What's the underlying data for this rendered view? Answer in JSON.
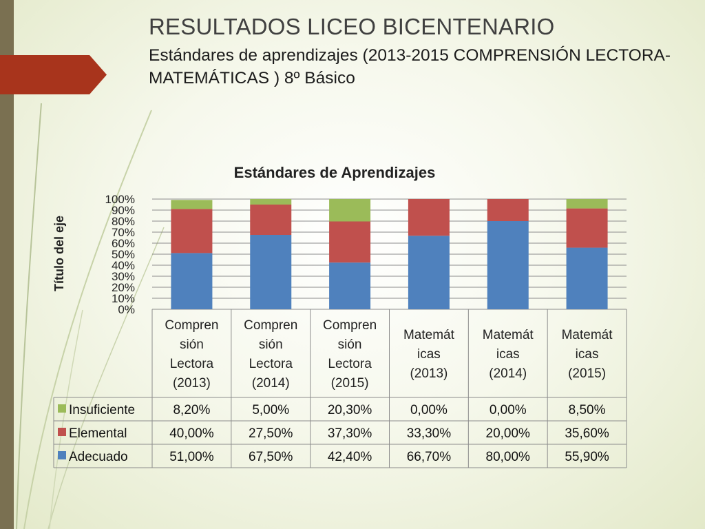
{
  "page": {
    "title": "RESULTADOS LICEO BICENTENARIO",
    "subtitle": "Estándares de aprendizajes (2013-2015 COMPRENSIÓN LECTORA- MATEMÁTICAS ) 8º Básico"
  },
  "chart_data": {
    "type": "bar",
    "stacked": true,
    "title": "Estándares de Aprendizajes",
    "ylabel": "Título del eje",
    "ylim": [
      0,
      100
    ],
    "yticks": [
      "0%",
      "10%",
      "20%",
      "30%",
      "40%",
      "50%",
      "60%",
      "70%",
      "80%",
      "90%",
      "100%"
    ],
    "grid": true,
    "legend_placement": "data-table-left",
    "categories": [
      [
        "Compren",
        "sión",
        "Lectora",
        "(2013)"
      ],
      [
        "Compren",
        "sión",
        "Lectora",
        "(2014)"
      ],
      [
        "Compren",
        "sión",
        "Lectora",
        "(2015)"
      ],
      [
        "Matemát",
        "icas",
        "(2013)"
      ],
      [
        "Matemát",
        "icas",
        "(2014)"
      ],
      [
        "Matemát",
        "icas",
        "(2015)"
      ]
    ],
    "series": [
      {
        "name": "Insuficiente",
        "color": "#9bbb59",
        "values": [
          8.2,
          5.0,
          20.3,
          0.0,
          0.0,
          8.5
        ],
        "labels": [
          "8,20%",
          "5,00%",
          "20,30%",
          "0,00%",
          "0,00%",
          "8,50%"
        ]
      },
      {
        "name": "Elemental",
        "color": "#c0504d",
        "values": [
          40.0,
          27.5,
          37.3,
          33.3,
          20.0,
          35.6
        ],
        "labels": [
          "40,00%",
          "27,50%",
          "37,30%",
          "33,30%",
          "20,00%",
          "35,60%"
        ]
      },
      {
        "name": "Adecuado",
        "color": "#4f81bd",
        "values": [
          51.0,
          67.5,
          42.4,
          66.7,
          80.0,
          55.9
        ],
        "labels": [
          "51,00%",
          "67,50%",
          "42,40%",
          "66,70%",
          "80,00%",
          "55,90%"
        ]
      }
    ]
  },
  "colors": {
    "accent": "#a8341c",
    "sidebar": "#7a7051"
  }
}
